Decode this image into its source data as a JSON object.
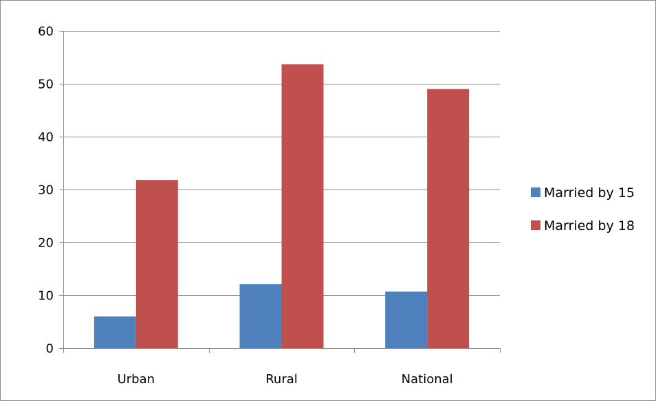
{
  "chart_data": {
    "type": "bar",
    "title": "",
    "xlabel": "",
    "ylabel": "",
    "categories": [
      "Urban",
      "Rural",
      "National"
    ],
    "series": [
      {
        "name": "Married by 15",
        "values": [
          6,
          12.1,
          10.7
        ],
        "color": "#4f81bd"
      },
      {
        "name": "Married by 18",
        "values": [
          31.8,
          53.7,
          49
        ],
        "color": "#c0504d"
      }
    ],
    "ylim": [
      0,
      60
    ],
    "yticks": [
      0,
      10,
      20,
      30,
      40,
      50,
      60
    ],
    "grid": true,
    "legend": "right"
  }
}
